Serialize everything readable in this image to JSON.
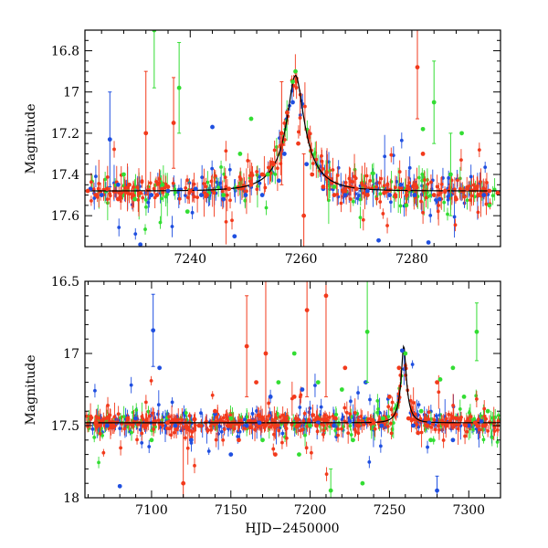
{
  "chart_data": [
    {
      "type": "scatter",
      "panel": "top",
      "xlim": [
        7221,
        7296
      ],
      "ylim": [
        16.7,
        17.75
      ],
      "y_inverted": true,
      "xlabel": "",
      "ylabel": "Magnitude",
      "xticks": [
        7240,
        7260,
        7280
      ],
      "yticks": [
        16.8,
        17,
        17.2,
        17.4,
        17.6
      ],
      "xtick_labels": [
        "7240",
        "7260",
        "7280"
      ],
      "ytick_labels": [
        "16.8",
        "17",
        "17.2",
        "17.4",
        "17.6"
      ],
      "baseline": 17.48,
      "model_peak": {
        "x": 7259.0,
        "mag": 16.92
      },
      "colors": {
        "blue": "#1f4fe0",
        "green": "#33dd33",
        "red": "#f23a1c"
      },
      "series": [
        {
          "name": "blue",
          "x": [
            7222,
            7224,
            7225.5,
            7227,
            7231,
            7233,
            7236,
            7241,
            7242,
            7244,
            7246,
            7248,
            7250,
            7253,
            7256,
            7257,
            7258.5,
            7261,
            7264,
            7268,
            7272,
            7274,
            7276,
            7278,
            7280.5,
            7283,
            7285,
            7287,
            7290,
            7293
          ],
          "y": [
            17.47,
            17.5,
            17.23,
            17.45,
            17.74,
            17.5,
            17.48,
            17.47,
            17.5,
            17.17,
            17.52,
            17.7,
            17.5,
            17.5,
            17.43,
            17.3,
            17.05,
            17.35,
            17.47,
            17.5,
            17.48,
            17.72,
            17.5,
            17.45,
            17.5,
            17.73,
            17.52,
            17.5,
            17.47,
            17.5
          ]
        },
        {
          "name": "green",
          "x": [
            7228,
            7230,
            7233.5,
            7235,
            7238,
            7239.5,
            7246,
            7249,
            7251,
            7254,
            7257.5,
            7258.5,
            7259,
            7266,
            7279,
            7282,
            7284,
            7287,
            7289,
            7294
          ],
          "y": [
            17.4,
            17.52,
            16.7,
            17.45,
            16.98,
            17.58,
            17.5,
            17.3,
            17.13,
            17.4,
            17.1,
            16.95,
            16.9,
            17.46,
            17.55,
            17.18,
            17.05,
            17.4,
            17.2,
            17.55
          ]
        },
        {
          "name": "red",
          "x": [
            7221.5,
            7223,
            7225,
            7227,
            7229,
            7231,
            7232,
            7234,
            7236,
            7237,
            7240,
            7243,
            7247,
            7251,
            7253,
            7255,
            7256.5,
            7257.5,
            7259.5,
            7260.5,
            7262,
            7264,
            7266,
            7268,
            7270,
            7272,
            7275,
            7277,
            7279.5,
            7281,
            7282,
            7284,
            7286,
            7288,
            7290,
            7292,
            7294,
            7295.5
          ],
          "y": [
            17.48,
            17.5,
            17.47,
            17.52,
            17.45,
            17.49,
            17.2,
            17.5,
            17.46,
            17.15,
            17.48,
            17.5,
            17.47,
            17.45,
            17.4,
            17.35,
            17.2,
            17.1,
            17.25,
            17.6,
            17.4,
            17.46,
            17.5,
            17.48,
            17.47,
            17.5,
            17.49,
            17.5,
            17.47,
            16.88,
            17.3,
            17.5,
            17.48,
            17.52,
            17.47,
            17.5,
            17.48,
            17.49
          ]
        }
      ],
      "error_bars": [
        {
          "series": "blue",
          "x": 7225.5,
          "y": 17.23,
          "err": 0.23
        },
        {
          "series": "green",
          "x": 7233.5,
          "y": 16.7,
          "err": 0.28
        },
        {
          "series": "green",
          "x": 7238,
          "y": 16.98,
          "err": 0.22
        },
        {
          "series": "red",
          "x": 7232,
          "y": 17.2,
          "err": 0.3
        },
        {
          "series": "red",
          "x": 7237,
          "y": 17.15,
          "err": 0.22
        },
        {
          "series": "red",
          "x": 7256.5,
          "y": 17.2,
          "err": 0.25
        },
        {
          "series": "red",
          "x": 7260.5,
          "y": 17.6,
          "err": 0.3
        },
        {
          "series": "red",
          "x": 7281,
          "y": 16.88,
          "err": 0.25
        },
        {
          "series": "green",
          "x": 7284,
          "y": 17.05,
          "err": 0.2
        },
        {
          "series": "green",
          "x": 7287,
          "y": 17.4,
          "err": 0.2
        }
      ]
    },
    {
      "type": "scatter",
      "panel": "bottom",
      "xlim": [
        7058,
        7320
      ],
      "ylim": [
        16.5,
        18.0
      ],
      "y_inverted": true,
      "xlabel": "HJD−2450000",
      "ylabel": "Magnitude",
      "xticks": [
        7100,
        7150,
        7200,
        7250,
        7300
      ],
      "yticks": [
        16.5,
        17,
        17.5,
        18
      ],
      "xtick_labels": [
        "7100",
        "7150",
        "7200",
        "7250",
        "7300"
      ],
      "ytick_labels": [
        "16.5",
        "17",
        "17.5",
        "18"
      ],
      "baseline": 17.48,
      "model_peak": {
        "x": 7259.0,
        "mag": 16.95
      },
      "colors": {
        "blue": "#1f4fe0",
        "green": "#33dd33",
        "red": "#f23a1c"
      },
      "series": [
        {
          "name": "blue",
          "x": [
            7072,
            7080,
            7090,
            7101,
            7105,
            7115,
            7125,
            7140,
            7150,
            7160,
            7168,
            7175,
            7185,
            7195,
            7205,
            7215,
            7225,
            7235,
            7245,
            7258,
            7265,
            7275,
            7280,
            7290,
            7300,
            7308
          ],
          "y": [
            17.5,
            17.92,
            17.45,
            16.84,
            17.1,
            17.5,
            17.6,
            17.42,
            17.7,
            17.5,
            17.48,
            17.3,
            17.45,
            17.25,
            17.48,
            17.5,
            17.47,
            17.2,
            17.5,
            16.98,
            17.5,
            17.48,
            17.95,
            17.6,
            17.5,
            17.47
          ]
        },
        {
          "name": "green",
          "x": [
            7100,
            7150,
            7170,
            7180,
            7186,
            7190,
            7193,
            7200,
            7205,
            7213,
            7220,
            7227,
            7233,
            7236,
            7246,
            7260,
            7270,
            7276,
            7282,
            7290,
            7297,
            7305,
            7312
          ],
          "y": [
            17.6,
            17.45,
            17.6,
            17.2,
            17.45,
            17.0,
            17.7,
            17.5,
            17.2,
            17.95,
            17.25,
            17.6,
            17.9,
            16.85,
            17.45,
            17.0,
            17.4,
            17.6,
            17.18,
            17.1,
            17.3,
            16.85,
            17.4
          ]
        },
        {
          "name": "red",
          "x": [
            7065,
            7075,
            7085,
            7095,
            7110,
            7120,
            7130,
            7140,
            7148,
            7155,
            7160,
            7166,
            7172,
            7178,
            7185,
            7190,
            7198,
            7204,
            7210,
            7216,
            7222,
            7230,
            7240,
            7250,
            7256,
            7262,
            7268,
            7274,
            7280,
            7286,
            7292,
            7298,
            7304,
            7310
          ],
          "y": [
            17.48,
            17.5,
            17.45,
            17.5,
            17.48,
            17.9,
            17.5,
            17.4,
            17.5,
            17.6,
            16.95,
            17.2,
            17.0,
            17.7,
            17.45,
            17.3,
            16.7,
            17.5,
            16.6,
            17.45,
            17.1,
            17.5,
            17.48,
            17.3,
            17.1,
            17.45,
            17.55,
            17.5,
            17.2,
            17.5,
            17.45,
            17.5,
            17.48,
            17.5
          ]
        }
      ],
      "error_bars": [
        {
          "series": "blue",
          "x": 7101,
          "y": 16.84,
          "err": 0.25
        },
        {
          "series": "red",
          "x": 7120,
          "y": 17.9,
          "err": 0.4
        },
        {
          "series": "red",
          "x": 7160,
          "y": 16.95,
          "err": 0.35
        },
        {
          "series": "red",
          "x": 7172,
          "y": 17.0,
          "err": 0.5
        },
        {
          "series": "red",
          "x": 7198,
          "y": 16.7,
          "err": 0.6
        },
        {
          "series": "red",
          "x": 7210,
          "y": 16.6,
          "err": 0.7
        },
        {
          "series": "green",
          "x": 7236,
          "y": 16.85,
          "err": 0.35
        },
        {
          "series": "green",
          "x": 7305,
          "y": 16.85,
          "err": 0.2
        },
        {
          "series": "blue",
          "x": 7280,
          "y": 17.95,
          "err": 0.1
        },
        {
          "series": "green",
          "x": 7213,
          "y": 17.95,
          "err": 0.15
        }
      ]
    }
  ]
}
